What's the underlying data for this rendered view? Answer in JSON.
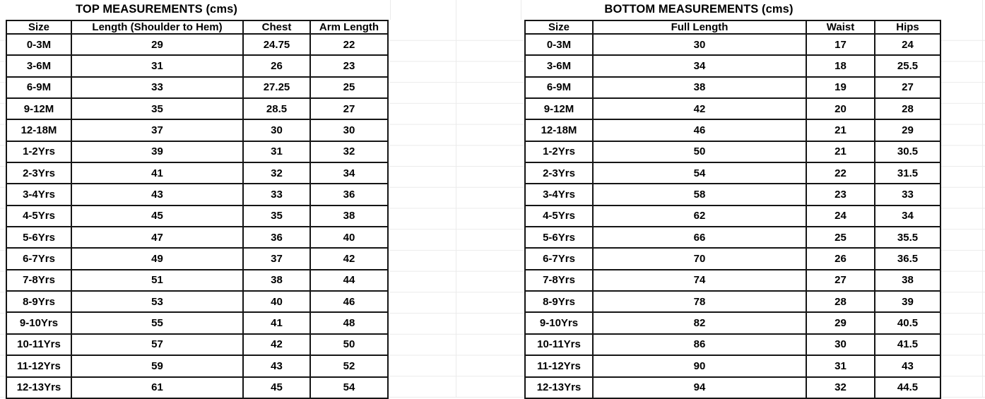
{
  "colors": {
    "background": "#ffffff",
    "table_border": "#151515",
    "text": "#000000",
    "faint_gridline": "#ebebeb"
  },
  "chart_data": [
    {
      "type": "table",
      "title": "TOP MEASUREMENTS (cms)",
      "columns": [
        "Size",
        "Length (Shoulder to Hem)",
        "Chest",
        "Arm Length"
      ],
      "rows": [
        [
          "0-3M",
          "29",
          "24.75",
          "22"
        ],
        [
          "3-6M",
          "31",
          "26",
          "23"
        ],
        [
          "6-9M",
          "33",
          "27.25",
          "25"
        ],
        [
          "9-12M",
          "35",
          "28.5",
          "27"
        ],
        [
          "12-18M",
          "37",
          "30",
          "30"
        ],
        [
          "1-2Yrs",
          "39",
          "31",
          "32"
        ],
        [
          "2-3Yrs",
          "41",
          "32",
          "34"
        ],
        [
          "3-4Yrs",
          "43",
          "33",
          "36"
        ],
        [
          "4-5Yrs",
          "45",
          "35",
          "38"
        ],
        [
          "5-6Yrs",
          "47",
          "36",
          "40"
        ],
        [
          "6-7Yrs",
          "49",
          "37",
          "42"
        ],
        [
          "7-8Yrs",
          "51",
          "38",
          "44"
        ],
        [
          "8-9Yrs",
          "53",
          "40",
          "46"
        ],
        [
          "9-10Yrs",
          "55",
          "41",
          "48"
        ],
        [
          "10-11Yrs",
          "57",
          "42",
          "50"
        ],
        [
          "11-12Yrs",
          "59",
          "43",
          "52"
        ],
        [
          "12-13Yrs",
          "61",
          "45",
          "54"
        ]
      ]
    },
    {
      "type": "table",
      "title": "BOTTOM MEASUREMENTS (cms)",
      "columns": [
        "Size",
        "Full Length",
        "Waist",
        "Hips"
      ],
      "rows": [
        [
          "0-3M",
          "30",
          "17",
          "24"
        ],
        [
          "3-6M",
          "34",
          "18",
          "25.5"
        ],
        [
          "6-9M",
          "38",
          "19",
          "27"
        ],
        [
          "9-12M",
          "42",
          "20",
          "28"
        ],
        [
          "12-18M",
          "46",
          "21",
          "29"
        ],
        [
          "1-2Yrs",
          "50",
          "21",
          "30.5"
        ],
        [
          "2-3Yrs",
          "54",
          "22",
          "31.5"
        ],
        [
          "3-4Yrs",
          "58",
          "23",
          "33"
        ],
        [
          "4-5Yrs",
          "62",
          "24",
          "34"
        ],
        [
          "5-6Yrs",
          "66",
          "25",
          "35.5"
        ],
        [
          "6-7Yrs",
          "70",
          "26",
          "36.5"
        ],
        [
          "7-8Yrs",
          "74",
          "27",
          "38"
        ],
        [
          "8-9Yrs",
          "78",
          "28",
          "39"
        ],
        [
          "9-10Yrs",
          "82",
          "29",
          "40.5"
        ],
        [
          "10-11Yrs",
          "86",
          "30",
          "41.5"
        ],
        [
          "11-12Yrs",
          "90",
          "31",
          "43"
        ],
        [
          "12-13Yrs",
          "94",
          "32",
          "44.5"
        ]
      ]
    }
  ]
}
